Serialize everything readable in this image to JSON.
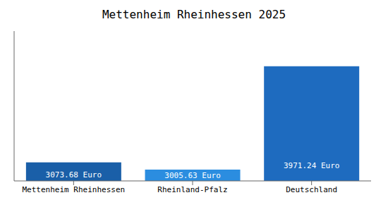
{
  "chart_data": {
    "type": "bar",
    "title": "Mettenheim Rheinhessen 2025",
    "categories": [
      "Mettenheim Rheinhessen",
      "Rheinland-Pfalz",
      "Deutschland"
    ],
    "values": [
      3073.68,
      3005.63,
      3971.24
    ],
    "value_labels": [
      "3073.68 Euro",
      "3005.63 Euro",
      "3971.24 Euro"
    ],
    "colors": [
      "#1a5fa8",
      "#2b8de0",
      "#1e6bbf"
    ],
    "ylim": [
      2900,
      4300
    ],
    "data_labels": true,
    "tick_labels": "x",
    "grid": false
  }
}
